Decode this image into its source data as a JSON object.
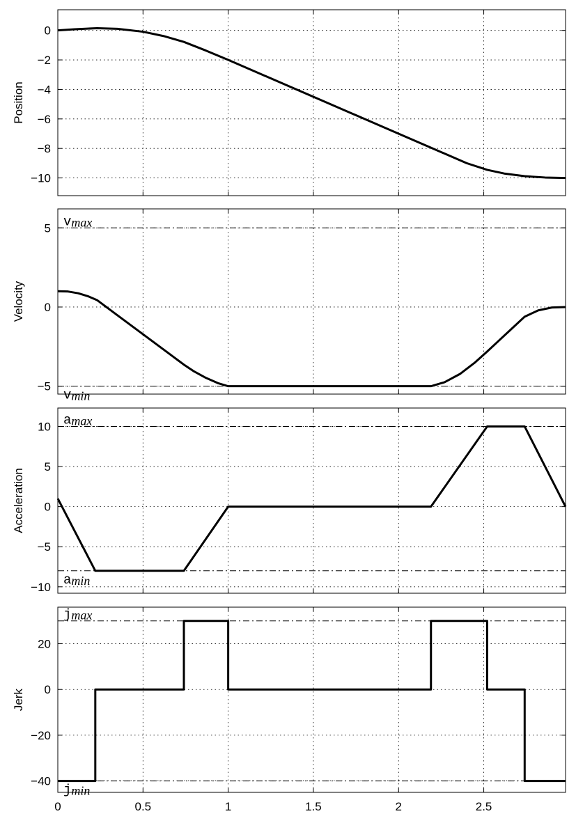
{
  "chart_data": [
    {
      "type": "line",
      "ylabel": "Position",
      "xlim": [
        0,
        2.98
      ],
      "ylim": [
        -11.2,
        1.4
      ],
      "yticks": [
        0,
        -2,
        -4,
        -6,
        -8,
        -10
      ],
      "ytick_labels": [
        "0",
        "−2",
        "−4",
        "−6",
        "−8",
        "−10"
      ],
      "series": [
        {
          "x": [
            0,
            0.1,
            0.23,
            0.35,
            0.5,
            0.62,
            0.74,
            0.87,
            1.0,
            1.5,
            2.0,
            2.19,
            2.3,
            2.4,
            2.52,
            2.62,
            2.74,
            2.86,
            2.98
          ],
          "values": [
            0,
            0.08,
            0.15,
            0.11,
            -0.09,
            -0.38,
            -0.78,
            -1.37,
            -2.0,
            -4.5,
            -7.0,
            -7.95,
            -8.5,
            -9.0,
            -9.45,
            -9.7,
            -9.88,
            -9.97,
            -10.0
          ]
        }
      ],
      "grid": true
    },
    {
      "type": "line",
      "ylabel": "Velocity",
      "xlim": [
        0,
        2.98
      ],
      "ylim": [
        -5.5,
        6.2
      ],
      "yticks": [
        5,
        0,
        -5
      ],
      "ytick_labels": [
        "5",
        "0",
        "−5"
      ],
      "series": [
        {
          "x": [
            0,
            0.06,
            0.12,
            0.18,
            0.23,
            0.35,
            0.5,
            0.65,
            0.74,
            0.8,
            0.87,
            0.94,
            1.0,
            2.19,
            2.27,
            2.36,
            2.45,
            2.52,
            2.58,
            2.66,
            2.74,
            2.82,
            2.9,
            2.98
          ],
          "values": [
            1.0,
            0.98,
            0.87,
            0.67,
            0.44,
            -0.52,
            -1.72,
            -2.92,
            -3.64,
            -4.07,
            -4.48,
            -4.81,
            -5.0,
            -5.0,
            -4.75,
            -4.23,
            -3.49,
            -2.81,
            -2.21,
            -1.41,
            -0.61,
            -0.21,
            -0.03,
            0.0
          ],
          "line_width": "thick"
        }
      ],
      "bounds": [
        {
          "value": 5,
          "label": "v",
          "sub": "max"
        },
        {
          "value": -5,
          "label": "v",
          "sub": "min"
        }
      ],
      "grid": true
    },
    {
      "type": "line",
      "ylabel": "Acceleration",
      "xlim": [
        0,
        2.98
      ],
      "ylim": [
        -10.8,
        12.3
      ],
      "yticks": [
        10,
        5,
        0,
        -5,
        -10
      ],
      "ytick_labels": [
        "10",
        "5",
        "0",
        "−5",
        "−10"
      ],
      "series": [
        {
          "x": [
            0,
            0.22,
            0.74,
            1.0,
            2.19,
            2.52,
            2.74,
            2.98
          ],
          "values": [
            1.0,
            -8.0,
            -8.0,
            0.0,
            0.0,
            10.0,
            10.0,
            0.0
          ]
        }
      ],
      "bounds": [
        {
          "value": 10,
          "label": "a",
          "sub": "max"
        },
        {
          "value": -8,
          "label": "a",
          "sub": "min"
        }
      ],
      "grid": true
    },
    {
      "type": "line",
      "ylabel": "Jerk",
      "xlim": [
        0,
        2.98
      ],
      "xticks": [
        0,
        0.5,
        1,
        1.5,
        2,
        2.5
      ],
      "xtick_labels": [
        "0",
        "0.5",
        "1",
        "1.5",
        "2",
        "2.5"
      ],
      "ylim": [
        -45,
        36
      ],
      "yticks": [
        20,
        0,
        -20,
        -40
      ],
      "ytick_labels": [
        "20",
        "0",
        "−20",
        "−40"
      ],
      "series": [
        {
          "x": [
            0,
            0.22,
            0.22,
            0.74,
            0.74,
            1.0,
            1.0,
            2.19,
            2.19,
            2.52,
            2.52,
            2.74,
            2.74,
            2.98
          ],
          "values": [
            -40,
            -40,
            0,
            0,
            30,
            30,
            0,
            0,
            30,
            30,
            0,
            0,
            -40,
            -40
          ]
        }
      ],
      "bounds": [
        {
          "value": 30,
          "label": "j",
          "sub": "max"
        },
        {
          "value": -40,
          "label": "j",
          "sub": "min"
        }
      ],
      "grid": true
    }
  ]
}
